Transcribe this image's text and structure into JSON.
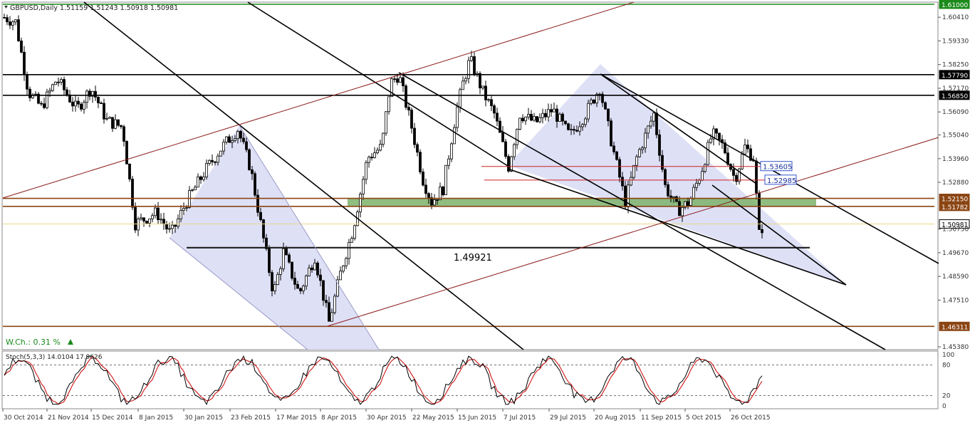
{
  "chart_data": {
    "type": "candlestick",
    "symbol_header": "GBPUSD,Daily  1.51159 1.51243 1.50918 1.50981",
    "price_scale": [
      "1.61000",
      "1.60410",
      "1.59330",
      "1.58250",
      "1.57790",
      "1.57170",
      "1.56850",
      "1.56090",
      "1.55040",
      "1.53960",
      "1.53605",
      "1.52880",
      "1.52985",
      "1.52150",
      "1.51782",
      "1.50981",
      "1.50750",
      "1.49670",
      "1.48590",
      "1.47510",
      "1.46311",
      "1.45380"
    ],
    "ylim": [
      1.4538,
      1.6126
    ],
    "x_dates": [
      "30 Oct 2014",
      "21 Nov 2014",
      "15 Dec 2014",
      "8 Jan 2015",
      "30 Jan 2015",
      "23 Feb 2015",
      "17 Mar 2015",
      "8 Apr 2015",
      "30 Apr 2015",
      "22 May 2015",
      "15 Jun 2015",
      "7 Jul 2015",
      "29 Jul 2015",
      "20 Aug 2015",
      "11 Sep 2015",
      "5 Oct 2015",
      "26 Oct 2015"
    ],
    "levels": [
      {
        "value": 1.61,
        "label": "1.61000",
        "color": "#1a8a1a"
      },
      {
        "value": 1.5779,
        "label": "1.57790",
        "color": "#000000"
      },
      {
        "value": 1.5685,
        "label": "1.56850",
        "color": "#000000"
      },
      {
        "value": 1.5215,
        "label": "1.52150",
        "color": "#8b4513"
      },
      {
        "value": 1.51782,
        "label": "1.51782",
        "color": "#8b4513"
      },
      {
        "value": 1.46311,
        "label": "1.46311",
        "color": "#8b4513"
      }
    ],
    "current_price": {
      "value": 1.50981,
      "label": "1.50981"
    },
    "red_levels": [
      {
        "value": 1.53605,
        "label": "1.53605"
      },
      {
        "value": 1.52985,
        "label": "1.52985"
      }
    ],
    "support_label": "1.49921",
    "support_value": 1.49921,
    "weekly_change": "W.Ch.: 0.31 %",
    "stoch": {
      "header": "Stoch(5,3,3) 14.0104 17.9626",
      "scale": [
        "100",
        "80",
        "20",
        "0"
      ],
      "levels": [
        80,
        20
      ]
    },
    "colors": {
      "bull": "#ffffff",
      "bear": "#000000",
      "zone": "#7cb26a",
      "channel_fill": "#d8daf4",
      "main": "#000000",
      "signal": "#cc0000",
      "level_brown": "#8b4513",
      "level_green": "#1a8a1a",
      "channel_red": "#8b1a1a"
    }
  }
}
